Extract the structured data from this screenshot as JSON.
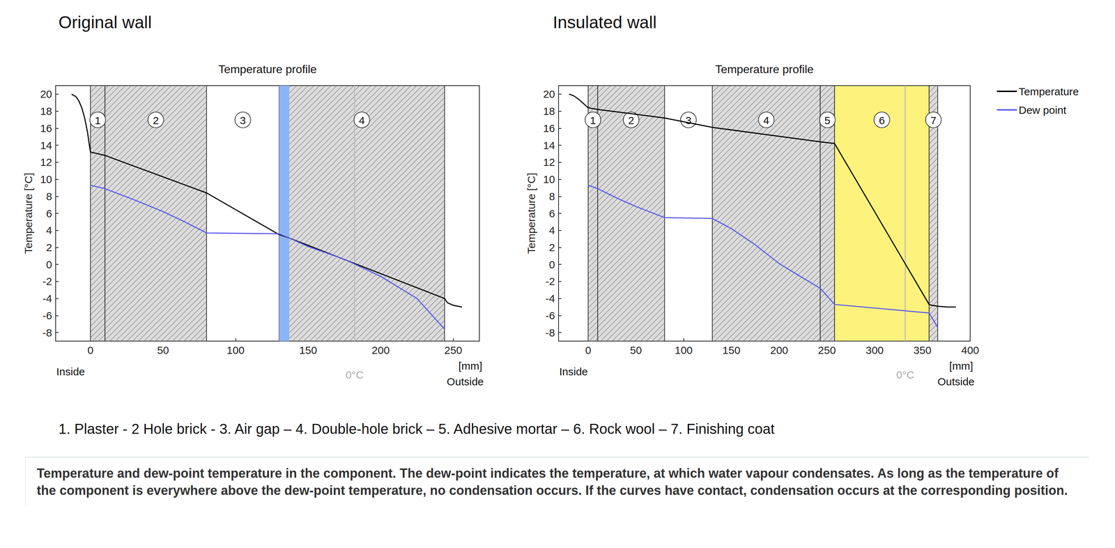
{
  "chart_data": [
    {
      "type": "line",
      "heading": "Original wall",
      "title": "Temperature profile",
      "y_label": "Temperature [°C]",
      "x_label": "[mm]",
      "x_start_label": "Inside",
      "x_end_label": "Outside",
      "xlim": [
        -24,
        268
      ],
      "xticks": [
        0,
        50,
        100,
        150,
        200,
        250
      ],
      "ylim": [
        -9,
        21
      ],
      "yticks": [
        -8,
        -6,
        -4,
        -2,
        0,
        2,
        4,
        6,
        8,
        10,
        12,
        14,
        16,
        18,
        20
      ],
      "grid": false,
      "legend": false,
      "layers": [
        {
          "label": "1",
          "from": 0,
          "to": 10,
          "type": "hatched",
          "color": "#dcdcdc"
        },
        {
          "label": "2",
          "from": 10,
          "to": 80,
          "type": "hatched",
          "color": "#dcdcdc"
        },
        {
          "label": "3",
          "from": 80,
          "to": 130,
          "type": "gap"
        },
        {
          "label": "4",
          "from": 130,
          "to": 244,
          "type": "hatched",
          "color": "#dcdcdc"
        }
      ],
      "condensation_zone": {
        "from": 130,
        "to": 137,
        "color": "#8db4f6"
      },
      "reference_line": {
        "x": 182,
        "label": "0°C"
      },
      "series": [
        {
          "name": "Temperature",
          "color": "#000000",
          "x": [
            -13,
            -10,
            -8,
            -6,
            -4,
            -2,
            -1,
            0,
            10,
            80,
            130,
            137,
            244,
            246,
            250,
            256
          ],
          "values": [
            20,
            19.7,
            19.2,
            18.4,
            17.2,
            15.5,
            14.3,
            13.2,
            12.8,
            8.4,
            3.5,
            3.1,
            -4,
            -4.5,
            -4.8,
            -5
          ]
        },
        {
          "name": "Dew point",
          "color": "#5c5cf2",
          "x": [
            0,
            10,
            30,
            50,
            65,
            80,
            130,
            137,
            150,
            175,
            200,
            225,
            244
          ],
          "values": [
            9.3,
            8.9,
            7.6,
            6.2,
            5.0,
            3.7,
            3.6,
            3.1,
            2.1,
            0.6,
            -1.4,
            -4.0,
            -7.6
          ]
        }
      ]
    },
    {
      "type": "line",
      "heading": "Insulated wall",
      "title": "Temperature profile",
      "y_label": "Temperature [°C]",
      "x_label": "[mm]",
      "x_start_label": "Inside",
      "x_end_label": "Outside",
      "xlim": [
        -31,
        400
      ],
      "xticks": [
        0,
        50,
        100,
        150,
        200,
        250,
        300,
        350,
        400
      ],
      "ylim": [
        -9,
        21
      ],
      "yticks": [
        -8,
        -6,
        -4,
        -2,
        0,
        2,
        4,
        6,
        8,
        10,
        12,
        14,
        16,
        18,
        20
      ],
      "grid": false,
      "legend": "right",
      "layers": [
        {
          "label": "1",
          "from": 0,
          "to": 10,
          "type": "hatched",
          "color": "#dcdcdc"
        },
        {
          "label": "2",
          "from": 10,
          "to": 80,
          "type": "hatched",
          "color": "#dcdcdc"
        },
        {
          "label": "3",
          "from": 80,
          "to": 130,
          "type": "gap"
        },
        {
          "label": "4",
          "from": 130,
          "to": 243,
          "type": "hatched",
          "color": "#dcdcdc"
        },
        {
          "label": "5",
          "from": 243,
          "to": 258,
          "type": "hatched",
          "color": "#dcdcdc"
        },
        {
          "label": "6",
          "from": 258,
          "to": 357,
          "type": "insulation",
          "color": "#fdf27b"
        },
        {
          "label": "7",
          "from": 357,
          "to": 366,
          "type": "hatched",
          "color": "#dcdcdc"
        }
      ],
      "reference_line": {
        "x": 332,
        "label": "0°C"
      },
      "series": [
        {
          "name": "Temperature",
          "color": "#000000",
          "x": [
            -20,
            -15,
            -10,
            -6,
            -3,
            0,
            10,
            80,
            130,
            243,
            258,
            357,
            360,
            366,
            375,
            385
          ],
          "values": [
            20,
            19.8,
            19.4,
            19,
            18.7,
            18.4,
            18.2,
            17.2,
            16.1,
            14.4,
            14.2,
            -4.7,
            -4.8,
            -4.9,
            -5,
            -5
          ]
        },
        {
          "name": "Dew point",
          "color": "#5c5cf2",
          "x": [
            0,
            10,
            30,
            50,
            80,
            130,
            150,
            175,
            200,
            225,
            243,
            258,
            357,
            366
          ],
          "values": [
            9.3,
            8.9,
            7.8,
            6.8,
            5.5,
            5.4,
            4.2,
            2.3,
            0.1,
            -1.6,
            -2.8,
            -4.7,
            -5.7,
            -7.4
          ]
        }
      ]
    }
  ],
  "layer_key": "1. Plaster - 2 Hole brick - 3. Air gap – 4. Double-hole brick – 5. Adhesive mortar – 6. Rock wool – 7. Finishing coat",
  "caption": "Temperature and dew-point temperature in the component. The dew-point indicates the temperature, at which water vapour condensates. As long as the temperature of the component is everywhere above the dew-point temperature, no condensation occurs. If the curves have contact, condensation occurs at the corresponding position."
}
